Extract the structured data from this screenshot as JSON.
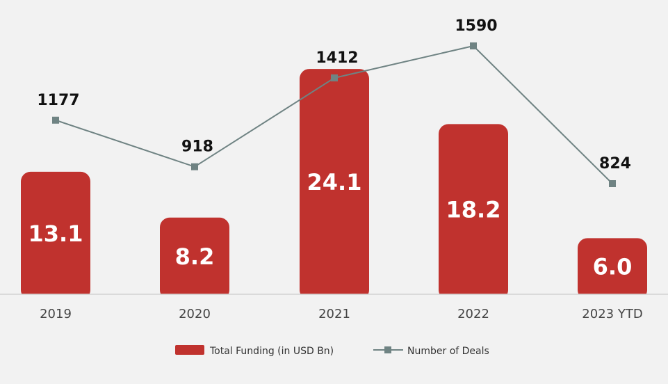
{
  "chart_data": {
    "type": "bar",
    "categories": [
      "2019",
      "2020",
      "2021",
      "2022",
      "2023 YTD"
    ],
    "series": [
      {
        "name": "Total Funding (in USD Bn)",
        "type": "bar",
        "axis": "left",
        "values": [
          13.1,
          8.2,
          24.1,
          18.2,
          6.0
        ],
        "value_labels": [
          "13.1",
          "8.2",
          "24.1",
          "18.2",
          "6.0"
        ],
        "color": "#c0322e"
      },
      {
        "name": "Number of Deals",
        "type": "line",
        "axis": "right",
        "values": [
          1177,
          918,
          1412,
          1590,
          824
        ],
        "value_labels": [
          "1177",
          "918",
          "1412",
          "1590",
          "824"
        ],
        "color": "#6f8383"
      }
    ],
    "title": "",
    "xlabel": "",
    "ylabel": "",
    "legend": {
      "position": "bottom-center",
      "items": [
        "Total Funding (in USD Bn)",
        "Number of Deals"
      ]
    },
    "grid": false
  }
}
